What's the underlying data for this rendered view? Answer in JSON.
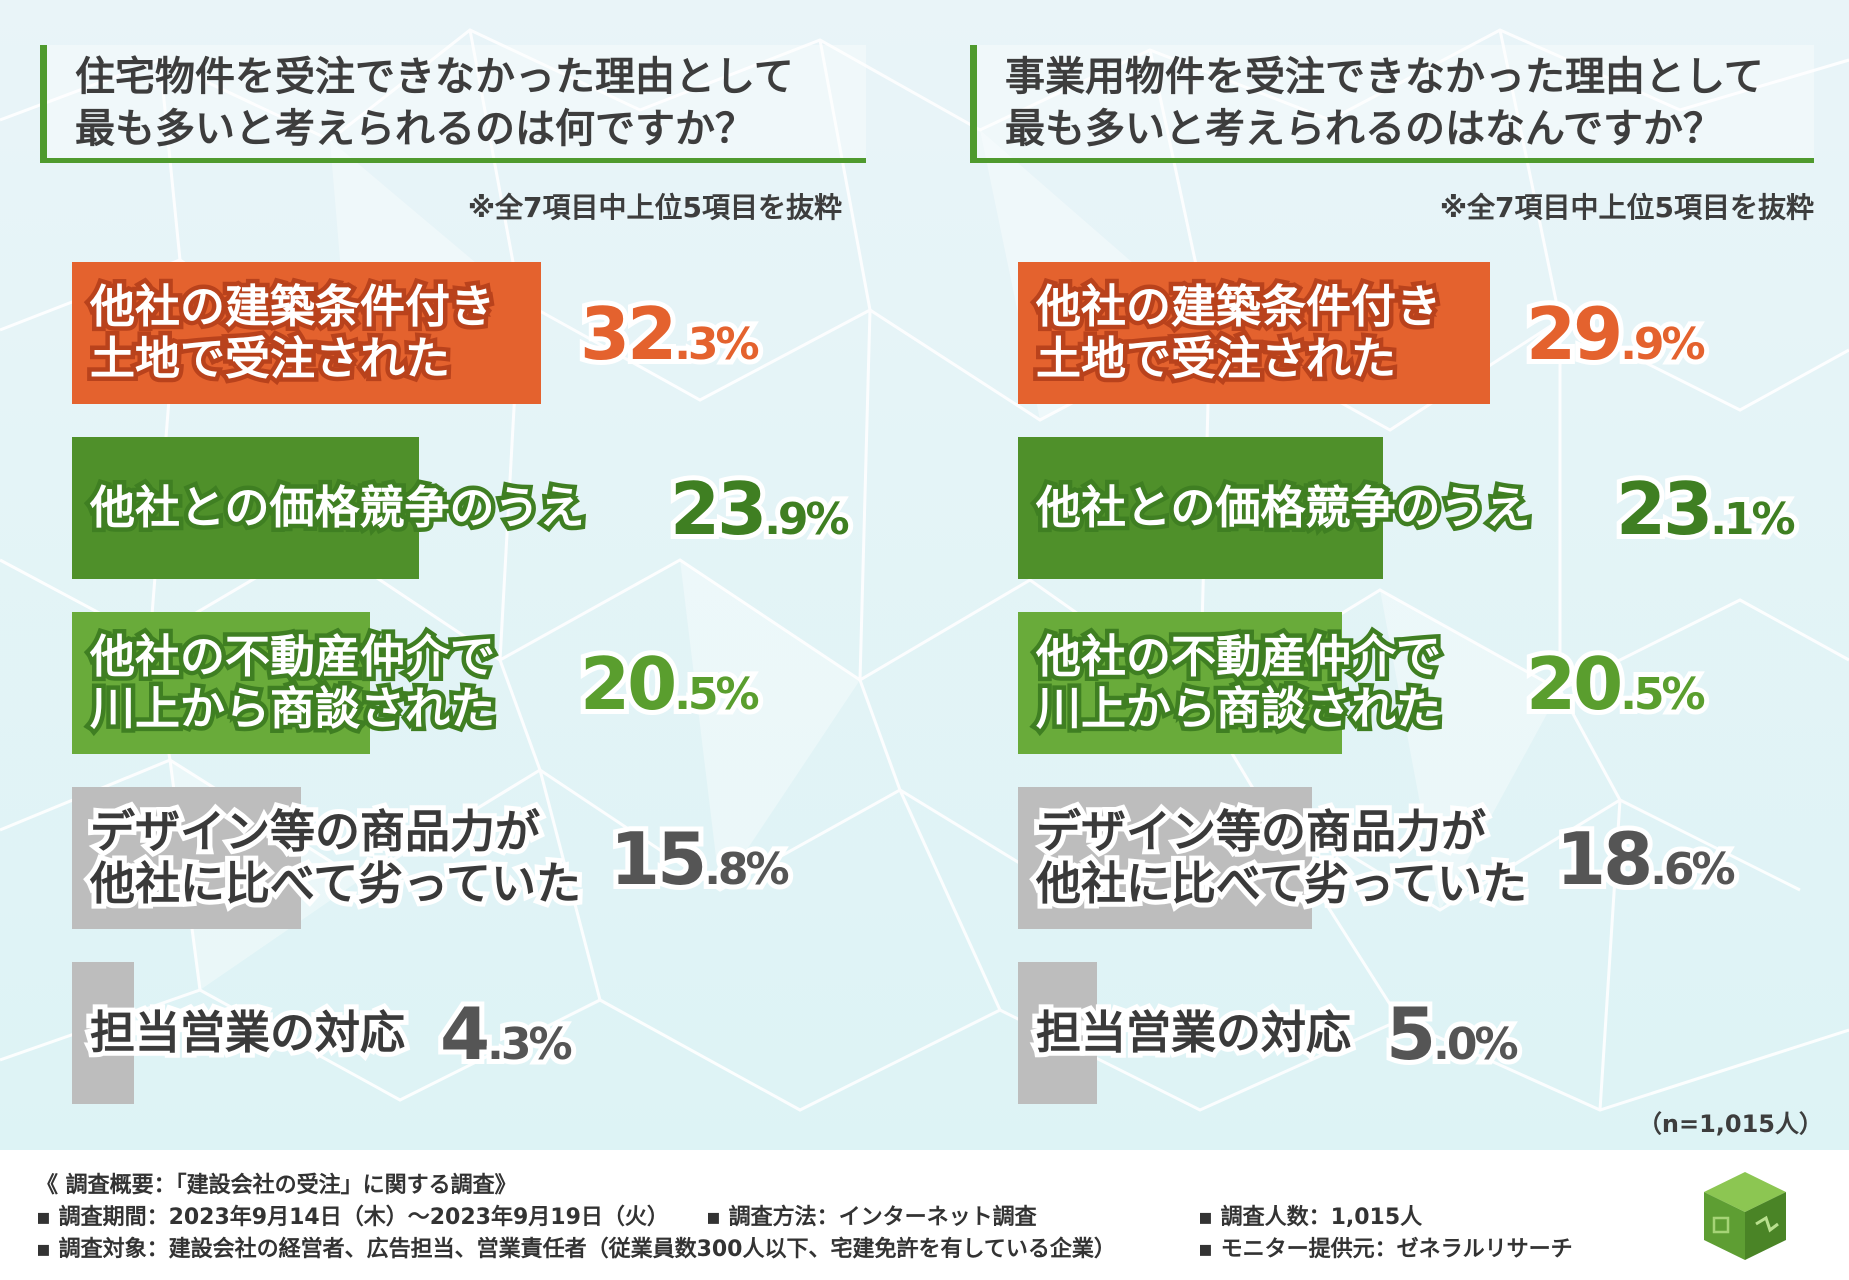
{
  "footer": {
    "overview": "《 調査概要：「建設会社の受注」に関する調査》",
    "period": "▪ 調査期間：2023年9月14日（木）～2023年9月19日（火）",
    "method": "▪ 調査方法：インターネット調査",
    "count": "▪ 調査人数：1,015人",
    "target": "▪ 調査対象：建設会社の経営者、広告担当、営業責任者（従業員数300人以下、宅建免許を有している企業）",
    "provider": "▪ モニター提供元：ゼネラルリサーチ"
  },
  "n_note": "（n=1,015人）",
  "colors": {
    "orange": "#e4622e",
    "dark_green": "#4f902a",
    "light_green": "#69ab3a",
    "gray": "#bdbdbd",
    "title_green": "#4f9a2e"
  },
  "chart_data": [
    {
      "type": "bar",
      "title": "住宅物件を受注できなかった理由として\n最も多いと考えられるのは何ですか？",
      "note": "※全7項目中上位5項目を抜粋",
      "categories": [
        "他社の建築条件付き\n土地で受注された",
        "他社との価格競争のうえ",
        "他社の不動産仲介で\n川上から商談された",
        "デザイン等の商品力が\n他社に比べて劣っていた",
        "担当営業の対応"
      ],
      "values": [
        32.3,
        23.9,
        20.5,
        15.8,
        4.3
      ],
      "value_labels": [
        {
          "int": "32",
          "dec": ".3%"
        },
        {
          "int": "23",
          "dec": ".9%"
        },
        {
          "int": "20",
          "dec": ".5%"
        },
        {
          "int": "15",
          "dec": ".8%"
        },
        {
          "int": "4",
          "dec": ".3%"
        }
      ],
      "xlim": [
        0,
        42
      ]
    },
    {
      "type": "bar",
      "title": "事業用物件を受注できなかった理由として\n最も多いと考えられるのはなんですか？",
      "note": "※全7項目中上位5項目を抜粋",
      "categories": [
        "他社の建築条件付き\n土地で受注された",
        "他社との価格競争のうえ",
        "他社の不動産仲介で\n川上から商談された",
        "デザイン等の商品力が\n他社に比べて劣っていた",
        "担当営業の対応"
      ],
      "values": [
        29.9,
        23.1,
        20.5,
        18.6,
        5.0
      ],
      "value_labels": [
        {
          "int": "29",
          "dec": ".9%"
        },
        {
          "int": "23",
          "dec": ".1%"
        },
        {
          "int": "20",
          "dec": ".5%"
        },
        {
          "int": "18",
          "dec": ".6%"
        },
        {
          "int": "5",
          "dec": ".0%"
        }
      ],
      "xlim": [
        0,
        38
      ]
    }
  ]
}
